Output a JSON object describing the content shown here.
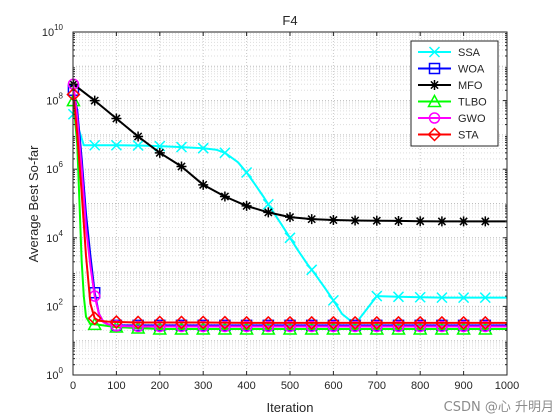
{
  "watermark": "CSDN @心 升明月",
  "chart_data": {
    "type": "line",
    "title": "F4",
    "xlabel": "Iteration",
    "ylabel": "Average Best So-far",
    "xlim": [
      0,
      1000
    ],
    "ylim": [
      1,
      10000000000
    ],
    "yscale": "log",
    "grid": "on (major and minor)",
    "legend_position": "top-right",
    "x_ticks": [
      "0",
      "100",
      "200",
      "300",
      "400",
      "500",
      "600",
      "700",
      "800",
      "900",
      "1000"
    ],
    "y_ticks": [
      {
        "base": "10",
        "exp": "0"
      },
      {
        "base": "10",
        "exp": "2"
      },
      {
        "base": "10",
        "exp": "4"
      },
      {
        "base": "10",
        "exp": "6"
      },
      {
        "base": "10",
        "exp": "8"
      },
      {
        "base": "10",
        "exp": "10"
      }
    ],
    "series": [
      {
        "name": "SSA",
        "color": "#00ffff",
        "marker": "x",
        "x": [
          1,
          10,
          25,
          50,
          100,
          150,
          200,
          250,
          300,
          330,
          350,
          380,
          400,
          420,
          440,
          460,
          480,
          500,
          520,
          540,
          560,
          580,
          600,
          620,
          650,
          700,
          750,
          800,
          850,
          900,
          950,
          1000
        ],
        "y": [
          40000000,
          20000000,
          5000000,
          5000000,
          5000000,
          4900000,
          4700000,
          4400000,
          4100000,
          3700000,
          3000000,
          1600000,
          800000,
          350000,
          150000,
          60000,
          25000,
          10000,
          4000,
          1700,
          800,
          350,
          150,
          60,
          30,
          200,
          190,
          185,
          180,
          180,
          180,
          180
        ]
      },
      {
        "name": "WOA",
        "color": "#0000ff",
        "marker": "square",
        "x": [
          1,
          10,
          20,
          30,
          40,
          50,
          60,
          70,
          80,
          100,
          150,
          200,
          300,
          400,
          500,
          600,
          700,
          800,
          900,
          1000
        ],
        "y": [
          200000000,
          50000000,
          2000000,
          50000,
          3000,
          250,
          60,
          35,
          30,
          28,
          28,
          28,
          28,
          28,
          28,
          28,
          28,
          28,
          28,
          28
        ]
      },
      {
        "name": "MFO",
        "color": "#000000",
        "marker": "asterisk",
        "x": [
          1,
          50,
          100,
          150,
          200,
          250,
          300,
          350,
          400,
          450,
          500,
          550,
          600,
          650,
          700,
          750,
          800,
          850,
          900,
          950,
          1000
        ],
        "y": [
          300000000,
          100000000,
          30000000,
          9000000,
          3000000,
          1200000,
          350000,
          160000,
          85000,
          55000,
          40000,
          35000,
          33000,
          32000,
          31500,
          31000,
          30500,
          30000,
          30000,
          30000,
          30000
        ]
      },
      {
        "name": "TLBO",
        "color": "#00ff00",
        "marker": "triangle",
        "x": [
          1,
          10,
          15,
          20,
          25,
          30,
          40,
          50,
          100,
          200,
          300,
          400,
          500,
          600,
          700,
          800,
          900,
          1000
        ],
        "y": [
          100000000,
          5000000,
          100000,
          2000,
          200,
          50,
          30,
          30,
          25,
          22,
          22,
          22,
          22,
          22,
          22,
          22,
          22,
          22
        ]
      },
      {
        "name": "GWO",
        "color": "#ff00ff",
        "marker": "circle",
        "x": [
          1,
          10,
          20,
          30,
          40,
          50,
          60,
          70,
          80,
          100,
          150,
          200,
          300,
          400,
          500,
          600,
          700,
          800,
          900,
          1000
        ],
        "y": [
          300000000,
          30000000,
          1000000,
          20000,
          1500,
          200,
          60,
          35,
          30,
          27,
          26,
          26,
          26,
          26,
          26,
          26,
          26,
          26,
          26,
          26
        ]
      },
      {
        "name": "STA",
        "color": "#ff0000",
        "marker": "diamond",
        "x": [
          1,
          10,
          20,
          30,
          40,
          50,
          60,
          80,
          100,
          150,
          200,
          300,
          400,
          500,
          600,
          700,
          800,
          900,
          1000
        ],
        "y": [
          150000000,
          10000000,
          200000,
          3000,
          120,
          45,
          38,
          36,
          35,
          34,
          34,
          34,
          33,
          33,
          33,
          33,
          33,
          33,
          33
        ]
      }
    ]
  }
}
